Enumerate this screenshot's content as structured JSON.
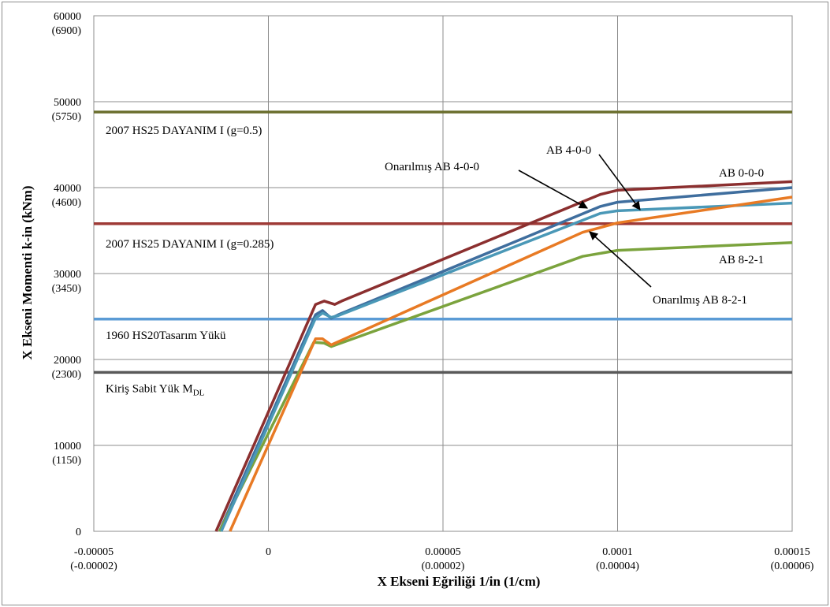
{
  "chart_data": {
    "type": "line",
    "xlabel": "X Ekseni Eğriliği 1/in (1/cm)",
    "ylabel": "X Ekseni Momenti k-in (kNm)",
    "xlim": [
      -5e-05,
      0.00015
    ],
    "ylim": [
      0,
      60000
    ],
    "grid": true,
    "x_ticks": [
      {
        "value": -5e-05,
        "label": "-0.00005",
        "sub": "(-0.00002)"
      },
      {
        "value": 0,
        "label": "0",
        "sub": ""
      },
      {
        "value": 5e-05,
        "label": "0.00005",
        "sub": "(0.00002)"
      },
      {
        "value": 0.0001,
        "label": "0.0001",
        "sub": "(0.00004)"
      },
      {
        "value": 0.00015,
        "label": "0.00015",
        "sub": "(0.00006)"
      }
    ],
    "y_ticks": [
      {
        "value": 0,
        "label": "0",
        "sub": ""
      },
      {
        "value": 10000,
        "label": "10000",
        "sub": "(1150)"
      },
      {
        "value": 20000,
        "label": "20000",
        "sub": "(2300)"
      },
      {
        "value": 30000,
        "label": "30000",
        "sub": "(3450)"
      },
      {
        "value": 40000,
        "label": "40000",
        "sub": "(4600)"
      },
      {
        "value": 50000,
        "label": "50000",
        "sub": "(5750)"
      },
      {
        "value": 60000,
        "label": "60000",
        "sub": "(6900)"
      }
    ],
    "series": [
      {
        "name": "AB 0-0-0",
        "color": "#8b2f2f",
        "x": [
          -1.5e-05,
          1.35e-05,
          1.6e-05,
          1.9e-05,
          2.1e-05,
          9.5e-05,
          0.0001,
          0.00015
        ],
        "y": [
          0,
          26400,
          26800,
          26400,
          26800,
          39200,
          39700,
          40700
        ]
      },
      {
        "name": "AB 4-0-0",
        "color": "#3f6e9e",
        "x": [
          -1.4e-05,
          1.35e-05,
          1.55e-05,
          1.8e-05,
          2e-05,
          9.5e-05,
          0.0001,
          0.00015
        ],
        "y": [
          0,
          25200,
          25700,
          24800,
          25200,
          37800,
          38300,
          40000
        ]
      },
      {
        "name": "AB 8-2-1",
        "color": "#7ba33d",
        "x": [
          -1.4e-05,
          1.3e-05,
          1.6e-05,
          1.8e-05,
          9e-05,
          0.0001,
          0.00015
        ],
        "y": [
          0,
          22000,
          21900,
          21500,
          32000,
          32700,
          33600
        ]
      },
      {
        "name": "Onarılmış AB 4-0-0",
        "color": "#4a98b7",
        "x": [
          -1.35e-05,
          1.35e-05,
          1.55e-05,
          1.8e-05,
          2e-05,
          9.5e-05,
          0.0001,
          0.00015
        ],
        "y": [
          0,
          24800,
          25400,
          24900,
          25100,
          37000,
          37300,
          38200
        ]
      },
      {
        "name": "Onarılmış AB 8-2-1",
        "color": "#e87a24",
        "x": [
          -1.1e-05,
          1.35e-05,
          1.55e-05,
          1.8e-05,
          9e-05,
          0.0001,
          0.00015
        ],
        "y": [
          0,
          22400,
          22400,
          21700,
          34800,
          35900,
          38900
        ]
      }
    ],
    "reference_lines": [
      {
        "label": "2007 HS25 DAYANIM I (g=0.5)",
        "y": 48800,
        "color": "#6b6f2e"
      },
      {
        "label": "2007 HS25 DAYANIM I (g=0.285)",
        "y": 35800,
        "color": "#9e3a36"
      },
      {
        "label": "1960 HS20Tasarım Yükü",
        "y": 24700,
        "color": "#5b9bd5"
      },
      {
        "label": "Kiriş Sabit Yük M",
        "label_subscript": "DL",
        "y": 18500,
        "color": "#595959"
      }
    ],
    "annotations": [
      {
        "text": "AB 4-0-0",
        "color": "#000000"
      },
      {
        "text": "AB 0-0-0",
        "color": "#000000"
      },
      {
        "text": "Onarılmış AB 4-0-0",
        "color": "#000000"
      },
      {
        "text": "AB 8-2-1",
        "color": "#000000"
      },
      {
        "text": "Onarılmış AB 8-2-1",
        "color": "#000000"
      }
    ]
  }
}
